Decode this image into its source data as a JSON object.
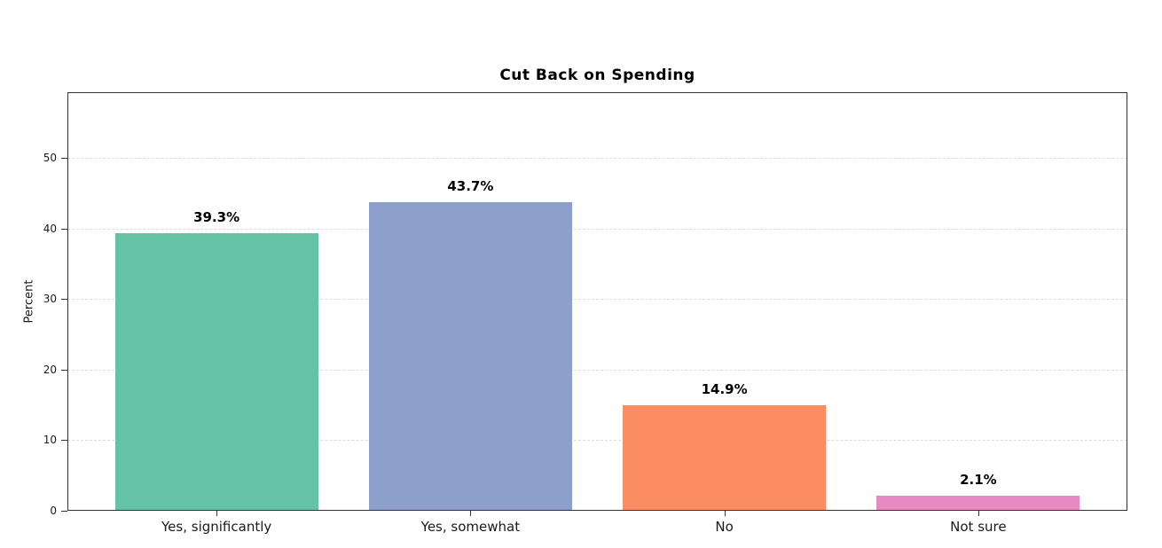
{
  "page": {
    "heading": "Cut Back on Spending",
    "heading_color": "#4a7dbc",
    "background": "#ffffff"
  },
  "chart_data": {
    "type": "bar",
    "title": "Cut Back on Spending",
    "categories": [
      "Yes, significantly",
      "Yes, somewhat",
      "No",
      "Not sure"
    ],
    "values": [
      39.3,
      43.7,
      14.9,
      2.1
    ],
    "value_labels": [
      "39.3%",
      "43.7%",
      "14.9%",
      "2.1%"
    ],
    "bar_colors": [
      "#66c2a5",
      "#8da0cb",
      "#fc8d62",
      "#e78ac3"
    ],
    "xlabel": "",
    "ylabel": "Percent",
    "ylim": [
      0,
      59.3
    ],
    "yticks": [
      0,
      10,
      20,
      30,
      40,
      50
    ],
    "grid": {
      "axis": "y",
      "style": "dashed",
      "color": "#dcdcdc"
    },
    "legend": "none",
    "spine_color": "#333333",
    "text_color": "#1a1a1a"
  }
}
